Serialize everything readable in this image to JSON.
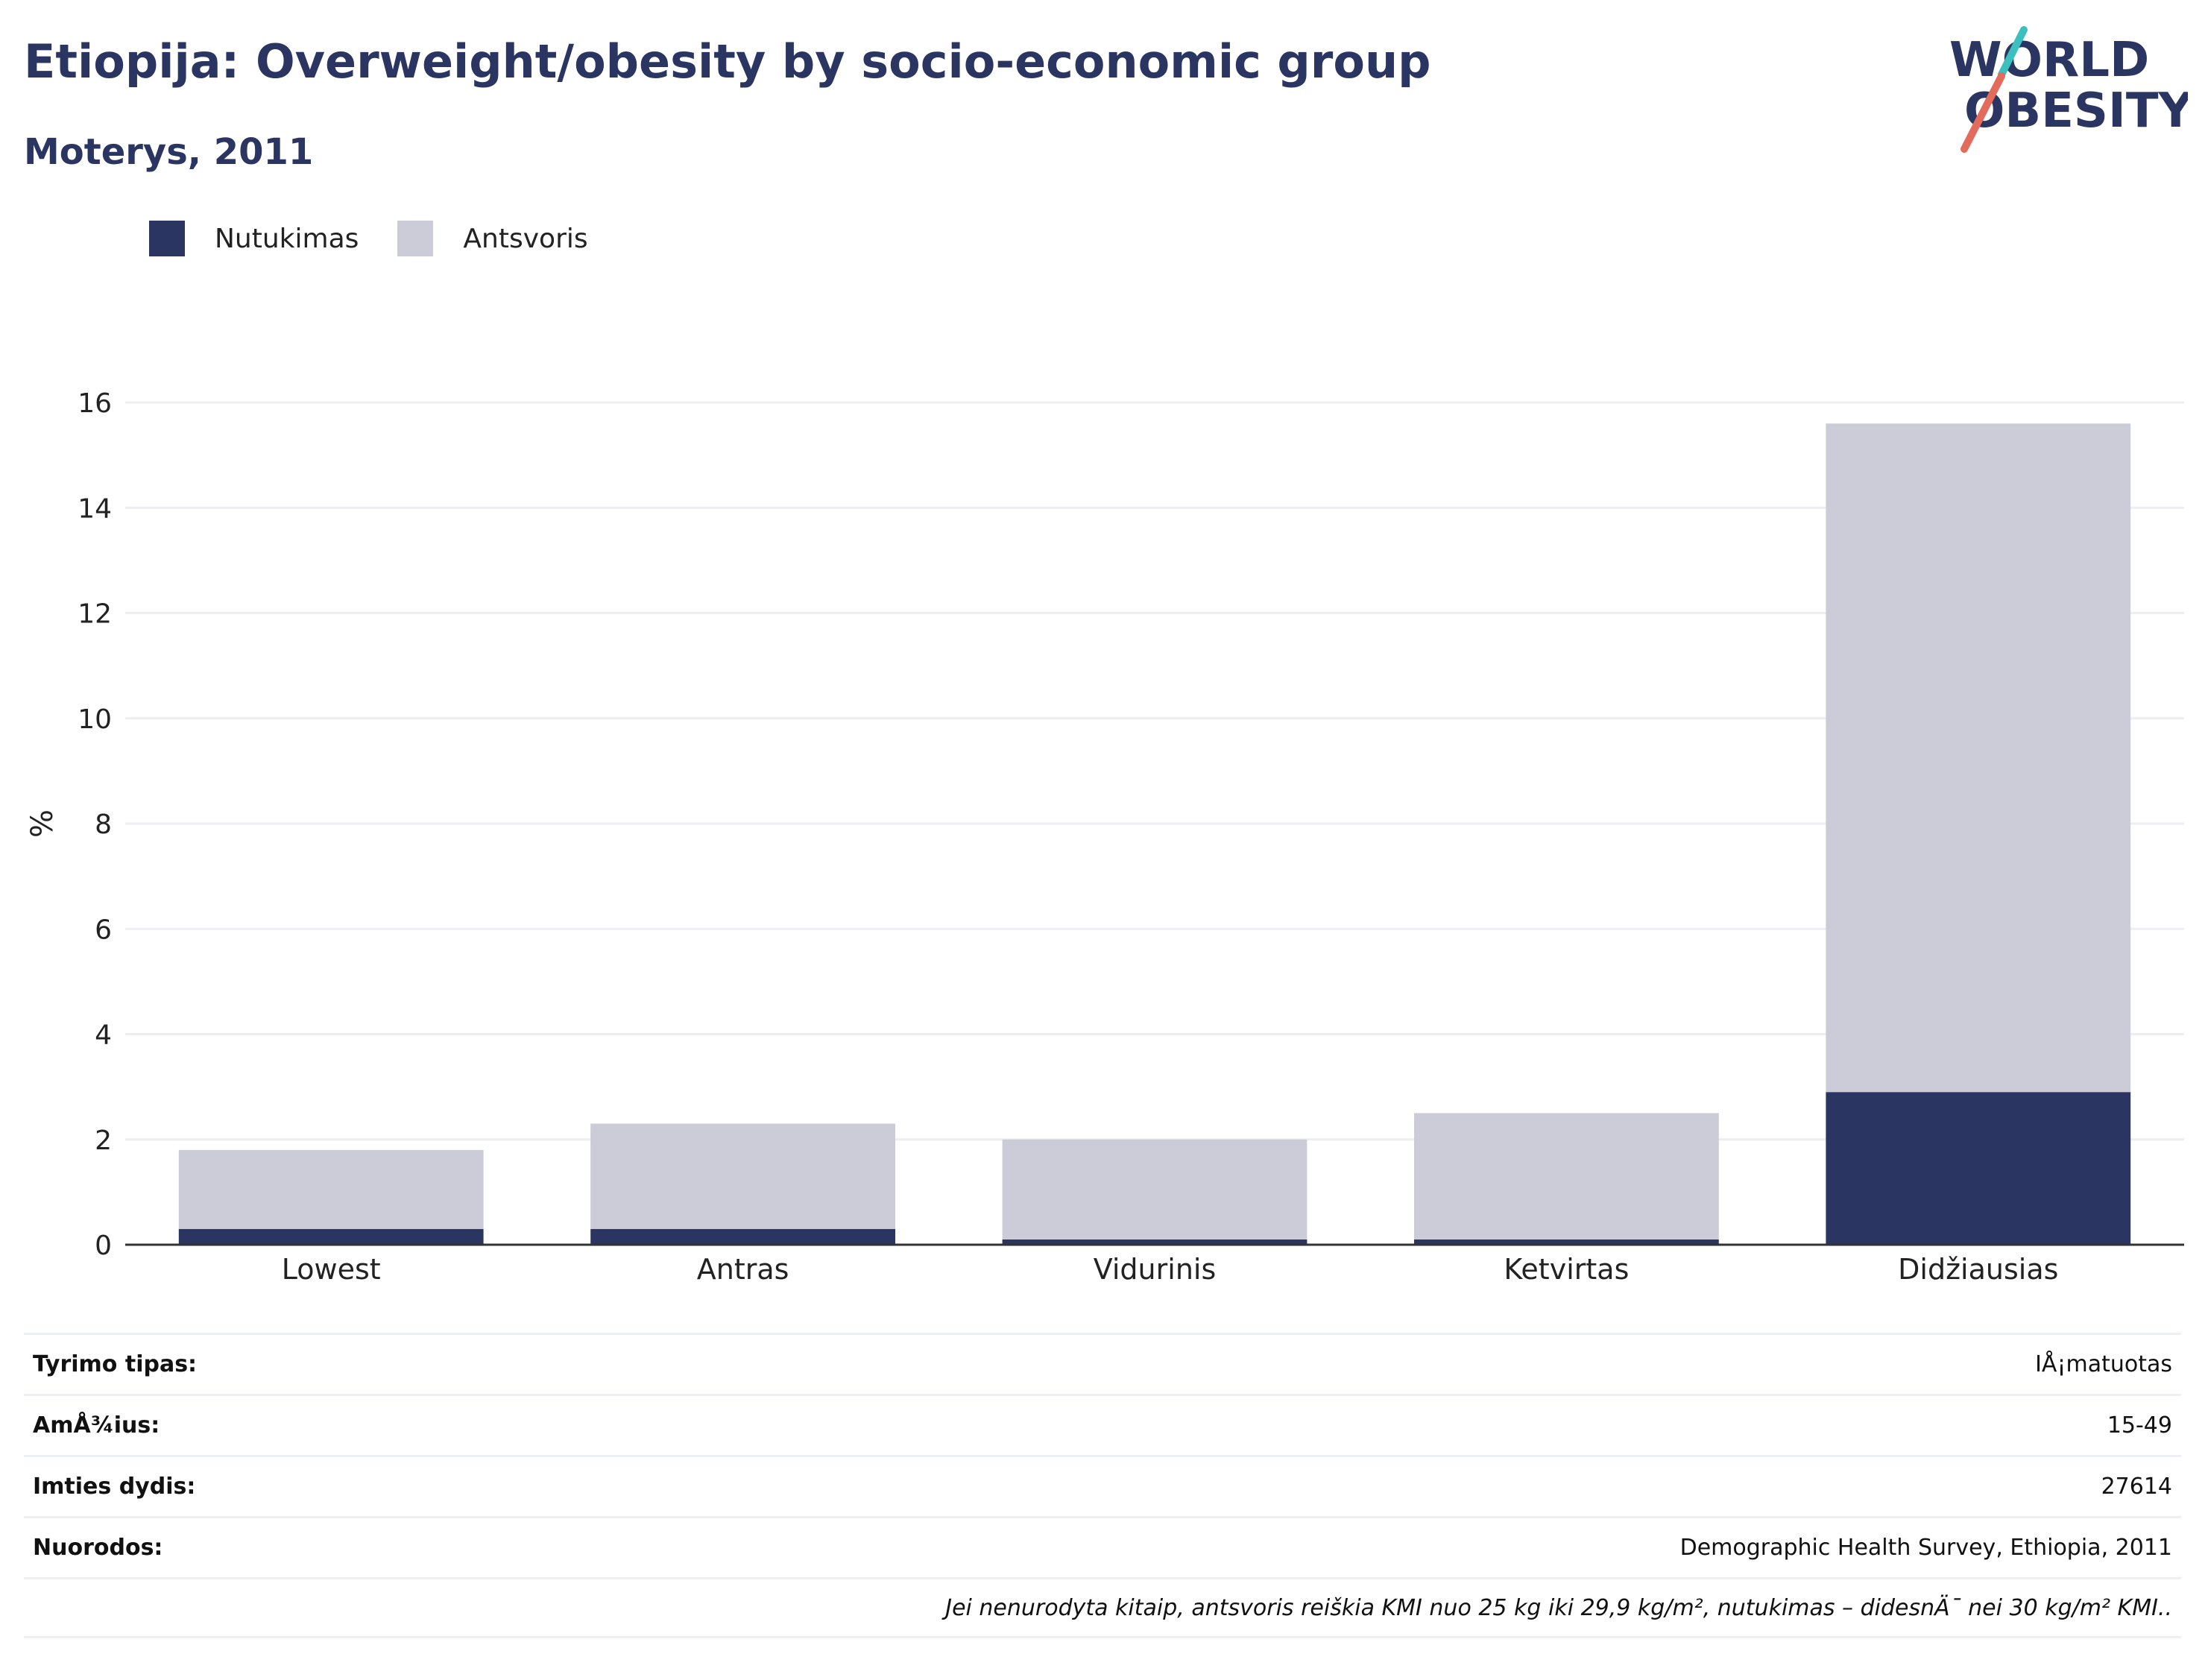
{
  "header": {
    "title": "Etiopija: Overweight/obesity by socio-economic group",
    "subtitle": "Moterys, 2011",
    "logo_line1": "WORLD",
    "logo_line2": "OBESITY"
  },
  "colors": {
    "obesity": "#2a3561",
    "overweight": "#cbccd7",
    "text": "#2a3561",
    "accent_teal": "#3bbfbf",
    "accent_coral": "#e36b5b"
  },
  "chart_data": {
    "type": "bar",
    "stacked": true,
    "categories": [
      "Lowest",
      "Antras",
      "Vidurinis",
      "Ketvirtas",
      "Didžiausias"
    ],
    "series": [
      {
        "name": "Nutukimas",
        "values": [
          0.3,
          0.3,
          0.1,
          0.1,
          2.9
        ]
      },
      {
        "name": "Antsvoris",
        "values": [
          1.5,
          2.0,
          1.9,
          2.4,
          12.7
        ]
      }
    ],
    "ylabel": "%",
    "ylim": [
      0,
      16
    ],
    "yticks": [
      0,
      2,
      4,
      6,
      8,
      10,
      12,
      14,
      16
    ],
    "grid": true,
    "legend_position": "top-left"
  },
  "info": [
    {
      "label": "Tyrimo tipas:",
      "value": "IÅ¡matuotas"
    },
    {
      "label": "AmÅ¾ius:",
      "value": "15-49"
    },
    {
      "label": "Imties dydis:",
      "value": "27614"
    },
    {
      "label": "Nuorodos:",
      "value": "Demographic Health Survey, Ethiopia, 2011"
    }
  ],
  "note": "Jei nenurodyta kitaip, antsvoris reiškia KMI nuo 25 kg iki 29,9 kg/m², nutukimas – didesnÄ¯ nei 30 kg/m² KMI.."
}
